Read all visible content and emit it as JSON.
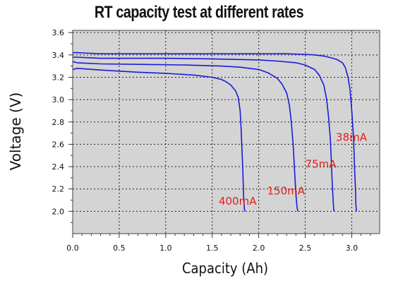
{
  "chart_data": {
    "type": "line",
    "title": "RT capacity test at different rates",
    "xlabel": "Capacity (Ah)",
    "ylabel": "Voltage (V)",
    "xlim": [
      0.0,
      3.3
    ],
    "ylim": [
      1.8,
      3.62
    ],
    "xticks": [
      "0.0",
      "0.5",
      "1.0",
      "1.5",
      "2.0",
      "2.5",
      "3.0"
    ],
    "yticks": [
      "2.0",
      "2.2",
      "2.4",
      "2.6",
      "2.8",
      "3.0",
      "3.2",
      "3.4",
      "3.6"
    ],
    "grid": true,
    "line_color": "#1a1adc",
    "plot_background": "#d4d4d4",
    "label_color": "#e0201e",
    "series": [
      {
        "name": "38mA",
        "x": [
          0,
          0.05,
          0.3,
          1.0,
          1.5,
          2.0,
          2.3,
          2.5,
          2.6,
          2.7,
          2.8,
          2.85,
          2.9,
          2.93,
          2.96,
          2.98,
          3.0,
          3.02,
          3.03,
          3.04,
          3.045,
          3.05
        ],
        "y": [
          3.42,
          3.42,
          3.41,
          3.41,
          3.41,
          3.41,
          3.41,
          3.405,
          3.4,
          3.39,
          3.37,
          3.355,
          3.33,
          3.29,
          3.2,
          3.1,
          2.9,
          2.65,
          2.4,
          2.2,
          2.05,
          2.0
        ]
      },
      {
        "name": "75mA",
        "x": [
          0,
          0.05,
          0.3,
          1.0,
          1.5,
          2.0,
          2.2,
          2.4,
          2.5,
          2.6,
          2.65,
          2.7,
          2.73,
          2.75,
          2.77,
          2.78,
          2.79,
          2.8,
          2.805,
          2.81
        ],
        "y": [
          3.38,
          3.38,
          3.37,
          3.37,
          3.365,
          3.355,
          3.345,
          3.33,
          3.31,
          3.27,
          3.22,
          3.13,
          3.0,
          2.85,
          2.65,
          2.45,
          2.25,
          2.1,
          2.03,
          2.0
        ]
      },
      {
        "name": "150mA",
        "x": [
          0,
          0.05,
          0.3,
          0.8,
          1.2,
          1.6,
          1.8,
          2.0,
          2.1,
          2.2,
          2.25,
          2.3,
          2.33,
          2.35,
          2.37,
          2.38,
          2.39,
          2.4,
          2.41,
          2.42
        ],
        "y": [
          3.34,
          3.33,
          3.32,
          3.315,
          3.31,
          3.3,
          3.29,
          3.27,
          3.24,
          3.19,
          3.14,
          3.06,
          2.95,
          2.8,
          2.6,
          2.45,
          2.3,
          2.15,
          2.05,
          2.0
        ]
      },
      {
        "name": "400mA",
        "x": [
          0,
          0.05,
          0.3,
          0.7,
          1.0,
          1.3,
          1.5,
          1.6,
          1.65,
          1.7,
          1.75,
          1.78,
          1.8,
          1.81,
          1.82,
          1.83,
          1.835,
          1.84,
          1.845,
          1.85
        ],
        "y": [
          3.27,
          3.28,
          3.265,
          3.245,
          3.235,
          3.22,
          3.2,
          3.18,
          3.16,
          3.13,
          3.08,
          3.02,
          2.9,
          2.75,
          2.55,
          2.35,
          2.2,
          2.1,
          2.03,
          2.0
        ]
      }
    ],
    "annotations": [
      {
        "text": "38mA",
        "x": 2.83,
        "y": 2.63
      },
      {
        "text": "75mA",
        "x": 2.5,
        "y": 2.39
      },
      {
        "text": "150mA",
        "x": 2.09,
        "y": 2.15
      },
      {
        "text": "400mA",
        "x": 1.57,
        "y": 2.06
      }
    ]
  }
}
